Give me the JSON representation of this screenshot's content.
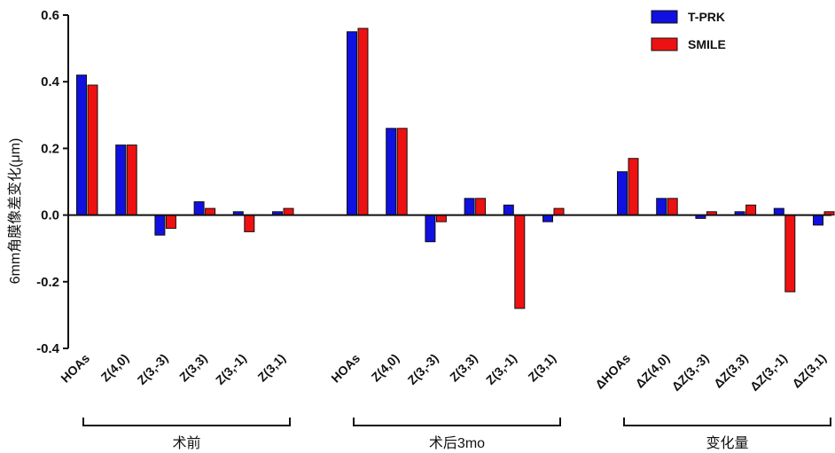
{
  "chart_data": {
    "type": "bar",
    "ylabel": "6mm角膜像差变化(μm)",
    "ylim": [
      -0.4,
      0.6
    ],
    "yticks": [
      "-0.4",
      "-0.2",
      "0.0",
      "0.2",
      "0.4",
      "0.6"
    ],
    "legend": {
      "position": "top-right",
      "entries": [
        {
          "name": "T-PRK",
          "color": "#1010e0"
        },
        {
          "name": "SMILE",
          "color": "#ee1111"
        }
      ]
    },
    "groups": [
      {
        "label": "术前",
        "categories": [
          "HOAs",
          "Z(4,0)",
          "Z(3,-3)",
          "Z(3,3)",
          "Z(3,-1)",
          "Z(3,1)"
        ],
        "series": [
          {
            "name": "T-PRK",
            "values": [
              0.42,
              0.21,
              -0.06,
              0.04,
              0.01,
              0.01
            ]
          },
          {
            "name": "SMILE",
            "values": [
              0.39,
              0.21,
              -0.04,
              0.02,
              -0.05,
              0.02
            ]
          }
        ]
      },
      {
        "label": "术后3mo",
        "categories": [
          "HOAs",
          "Z(4,0)",
          "Z(3,-3)",
          "Z(3,3)",
          "Z(3,-1)",
          "Z(3,1)"
        ],
        "series": [
          {
            "name": "T-PRK",
            "values": [
              0.55,
              0.26,
              -0.08,
              0.05,
              0.03,
              -0.02
            ]
          },
          {
            "name": "SMILE",
            "values": [
              0.56,
              0.26,
              -0.02,
              0.05,
              -0.28,
              0.02
            ]
          }
        ]
      },
      {
        "label": "变化量",
        "categories": [
          "ΔHOAs",
          "ΔZ(4,0)",
          "ΔZ(3,-3)",
          "ΔZ(3,3)",
          "ΔZ(3,-1)",
          "ΔZ(3,1)"
        ],
        "series": [
          {
            "name": "T-PRK",
            "values": [
              0.13,
              0.05,
              -0.01,
              0.01,
              0.02,
              -0.03
            ]
          },
          {
            "name": "SMILE",
            "values": [
              0.17,
              0.05,
              0.01,
              0.03,
              -0.23,
              0.01
            ]
          }
        ]
      }
    ]
  }
}
